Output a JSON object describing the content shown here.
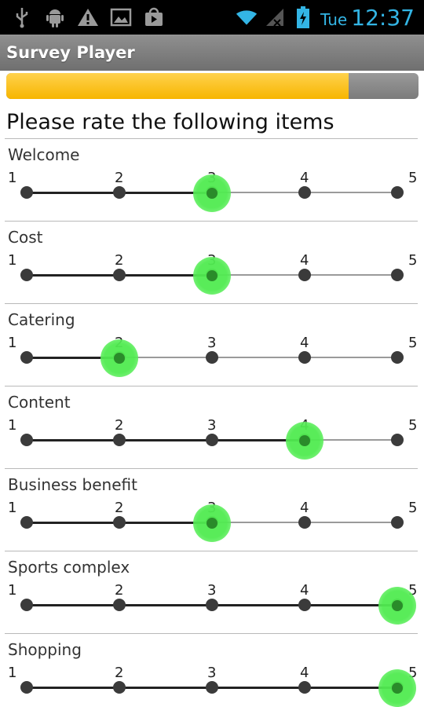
{
  "status_bar": {
    "left_icons": [
      "usb-icon",
      "android-icon",
      "warning-icon",
      "image-icon",
      "play-store-icon"
    ],
    "right_icons": [
      "wifi-icon",
      "signal-icon",
      "battery-icon"
    ],
    "day": "Tue",
    "time": "12:37",
    "accent_color": "#33b5e5"
  },
  "app": {
    "title": "Survey Player"
  },
  "progress": {
    "value": 0.83,
    "fill_color": "#f7b500",
    "track_color": "#8a8a8a"
  },
  "heading": "Please rate the following items",
  "scale_labels": [
    "1",
    "2",
    "3",
    "4",
    "5"
  ],
  "thumb_color": "#57ec57",
  "items": [
    {
      "label": "Welcome",
      "rating": 3
    },
    {
      "label": "Cost",
      "rating": 3
    },
    {
      "label": "Catering",
      "rating": 2
    },
    {
      "label": "Content",
      "rating": 4
    },
    {
      "label": "Business benefit",
      "rating": 3
    },
    {
      "label": "Sports complex",
      "rating": 5
    },
    {
      "label": "Shopping",
      "rating": 5
    }
  ]
}
